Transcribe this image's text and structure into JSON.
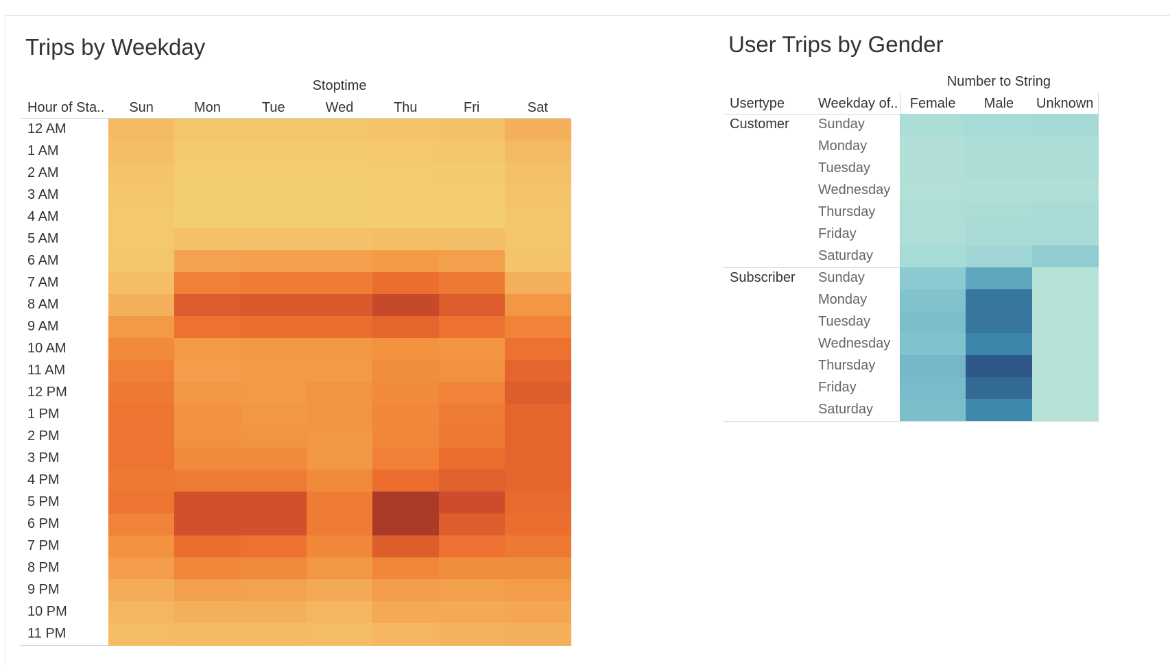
{
  "dashboard": {
    "heatmap_title": "Trips by Weekday",
    "gender_title": "User Trips by Gender"
  },
  "chart_data": [
    {
      "type": "heatmap",
      "title": "Trips by Weekday",
      "column_group_label": "Stoptime",
      "row_header": "Hour of Sta..",
      "columns": [
        "Sun",
        "Mon",
        "Tue",
        "Wed",
        "Thu",
        "Fri",
        "Sat"
      ],
      "rows": [
        "12 AM",
        "1 AM",
        "2 AM",
        "3 AM",
        "4 AM",
        "5 AM",
        "6 AM",
        "7 AM",
        "8 AM",
        "9 AM",
        "10 AM",
        "11 AM",
        "12 PM",
        "1 PM",
        "2 PM",
        "3 PM",
        "4 PM",
        "5 PM",
        "6 PM",
        "7 PM",
        "8 PM",
        "9 PM",
        "10 PM",
        "11 PM"
      ],
      "relative_intensity": [
        [
          0.22,
          0.12,
          0.12,
          0.12,
          0.14,
          0.16,
          0.3
        ],
        [
          0.18,
          0.08,
          0.08,
          0.08,
          0.1,
          0.12,
          0.22
        ],
        [
          0.14,
          0.06,
          0.06,
          0.06,
          0.07,
          0.08,
          0.16
        ],
        [
          0.12,
          0.05,
          0.05,
          0.05,
          0.06,
          0.07,
          0.14
        ],
        [
          0.1,
          0.05,
          0.05,
          0.05,
          0.06,
          0.06,
          0.12
        ],
        [
          0.1,
          0.16,
          0.16,
          0.16,
          0.18,
          0.18,
          0.12
        ],
        [
          0.12,
          0.38,
          0.4,
          0.4,
          0.44,
          0.4,
          0.14
        ],
        [
          0.18,
          0.6,
          0.62,
          0.62,
          0.7,
          0.64,
          0.3
        ],
        [
          0.3,
          0.78,
          0.8,
          0.8,
          0.88,
          0.78,
          0.46
        ],
        [
          0.44,
          0.68,
          0.7,
          0.7,
          0.74,
          0.68,
          0.58
        ],
        [
          0.54,
          0.44,
          0.46,
          0.46,
          0.5,
          0.48,
          0.68
        ],
        [
          0.6,
          0.42,
          0.44,
          0.44,
          0.52,
          0.5,
          0.74
        ],
        [
          0.64,
          0.46,
          0.44,
          0.48,
          0.54,
          0.58,
          0.78
        ],
        [
          0.66,
          0.5,
          0.46,
          0.48,
          0.56,
          0.62,
          0.74
        ],
        [
          0.66,
          0.5,
          0.48,
          0.46,
          0.56,
          0.64,
          0.74
        ],
        [
          0.66,
          0.54,
          0.54,
          0.46,
          0.6,
          0.7,
          0.74
        ],
        [
          0.64,
          0.62,
          0.62,
          0.54,
          0.7,
          0.76,
          0.74
        ],
        [
          0.66,
          0.84,
          0.84,
          0.62,
          0.96,
          0.86,
          0.72
        ],
        [
          0.58,
          0.84,
          0.84,
          0.62,
          0.96,
          0.78,
          0.7
        ],
        [
          0.5,
          0.7,
          0.68,
          0.56,
          0.78,
          0.68,
          0.64
        ],
        [
          0.42,
          0.56,
          0.54,
          0.46,
          0.56,
          0.52,
          0.52
        ],
        [
          0.32,
          0.4,
          0.38,
          0.34,
          0.42,
          0.4,
          0.42
        ],
        [
          0.26,
          0.3,
          0.3,
          0.26,
          0.34,
          0.34,
          0.36
        ],
        [
          0.2,
          0.22,
          0.22,
          0.2,
          0.26,
          0.28,
          0.3
        ]
      ]
    },
    {
      "type": "heatmap",
      "title": "User Trips by Gender",
      "column_group_label": "Number to String",
      "row_headers": [
        "Usertype",
        "Weekday of.."
      ],
      "columns": [
        "Female",
        "Male",
        "Unknown"
      ],
      "groups": [
        {
          "usertype": "Customer",
          "weekdays": [
            "Sunday",
            "Monday",
            "Tuesday",
            "Wednesday",
            "Thursday",
            "Friday",
            "Saturday"
          ],
          "relative_intensity": [
            [
              0.22,
              0.28,
              0.3
            ],
            [
              0.14,
              0.2,
              0.2
            ],
            [
              0.14,
              0.2,
              0.2
            ],
            [
              0.12,
              0.16,
              0.16
            ],
            [
              0.18,
              0.22,
              0.24
            ],
            [
              0.18,
              0.24,
              0.26
            ],
            [
              0.28,
              0.32,
              0.38
            ]
          ]
        },
        {
          "usertype": "Subscriber",
          "weekdays": [
            "Sunday",
            "Monday",
            "Tuesday",
            "Wednesday",
            "Thursday",
            "Friday",
            "Saturday"
          ],
          "relative_intensity": [
            [
              0.4,
              0.58,
              0.06
            ],
            [
              0.44,
              0.82,
              0.06
            ],
            [
              0.46,
              0.82,
              0.06
            ],
            [
              0.44,
              0.74,
              0.06
            ],
            [
              0.5,
              0.97,
              0.06
            ],
            [
              0.48,
              0.88,
              0.06
            ],
            [
              0.46,
              0.72,
              0.06
            ]
          ]
        }
      ]
    }
  ]
}
